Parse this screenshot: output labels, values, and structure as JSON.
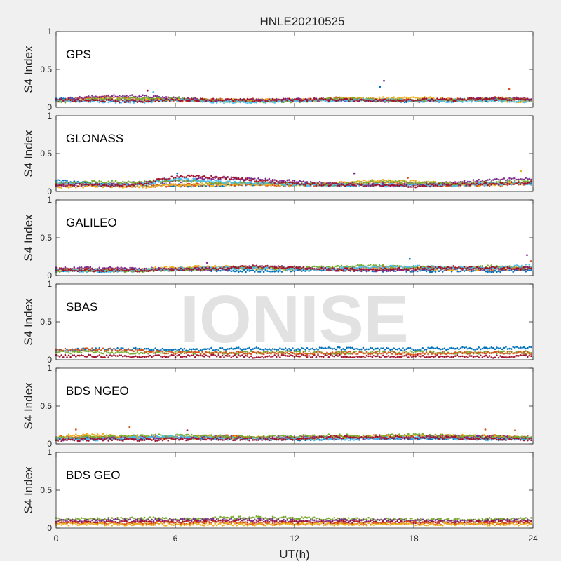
{
  "figure": {
    "title": "HNLE20210525",
    "watermark": "IONISE",
    "background": "#f0f0f0"
  },
  "series_colors": [
    "#0072bd",
    "#d95319",
    "#edb120",
    "#7e2f8e",
    "#77ac30",
    "#4dbeee",
    "#a2142f"
  ],
  "chart_data": [
    {
      "type": "scatter",
      "label": "GPS",
      "ylabel": "S4 Index",
      "xlim": [
        0,
        24
      ],
      "ylim": [
        0,
        1
      ],
      "xticks": [
        0,
        6,
        12,
        18,
        24
      ],
      "yticks": [
        0,
        0.5,
        1
      ],
      "series": [
        {
          "color": "#0072bd",
          "values": [
            0.11,
            0.1,
            0.09,
            0.1,
            0.08,
            0.09,
            0.09,
            0.1,
            0.09,
            0.08,
            0.09,
            0.1,
            0.1
          ]
        },
        {
          "color": "#d95319",
          "values": [
            0.1,
            0.13,
            0.12,
            0.09,
            0.1,
            0.1,
            0.09,
            0.12,
            0.1,
            0.09,
            0.1,
            0.12,
            0.11
          ]
        },
        {
          "color": "#edb120",
          "values": [
            0.08,
            0.11,
            0.1,
            0.09,
            0.08,
            0.1,
            0.09,
            0.11,
            0.12,
            0.13,
            0.1,
            0.09,
            0.08
          ]
        },
        {
          "color": "#7e2f8e",
          "values": [
            0.1,
            0.14,
            0.15,
            0.12,
            0.09,
            0.09,
            0.1,
            0.1,
            0.09,
            0.08,
            0.1,
            0.11,
            0.12
          ]
        },
        {
          "color": "#77ac30",
          "values": [
            0.07,
            0.1,
            0.12,
            0.11,
            0.09,
            0.08,
            0.08,
            0.11,
            0.1,
            0.09,
            0.1,
            0.1,
            0.09
          ]
        },
        {
          "color": "#4dbeee",
          "values": [
            0.09,
            0.08,
            0.07,
            0.1,
            0.07,
            0.07,
            0.08,
            0.09,
            0.1,
            0.09,
            0.08,
            0.09,
            0.08
          ]
        },
        {
          "color": "#a2142f",
          "values": [
            0.09,
            0.09,
            0.08,
            0.1,
            0.1,
            0.09,
            0.1,
            0.1,
            0.09,
            0.1,
            0.1,
            0.11,
            0.1
          ]
        }
      ],
      "spikes": [
        [
          4.6,
          0.22
        ],
        [
          4.9,
          0.2
        ],
        [
          16.5,
          0.35
        ],
        [
          16.3,
          0.27
        ],
        [
          22.8,
          0.24
        ]
      ]
    },
    {
      "type": "scatter",
      "label": "GLONASS",
      "ylabel": "S4 Index",
      "xlim": [
        0,
        24
      ],
      "ylim": [
        0,
        1
      ],
      "xticks": [
        0,
        6,
        12,
        18,
        24
      ],
      "yticks": [
        0,
        0.5,
        1
      ],
      "series": [
        {
          "color": "#0072bd",
          "values": [
            0.14,
            0.1,
            0.09,
            0.08,
            0.08,
            0.1,
            0.11,
            0.09,
            0.08,
            0.08,
            0.09,
            0.1,
            0.11
          ]
        },
        {
          "color": "#d95319",
          "values": [
            0.1,
            0.09,
            0.07,
            0.08,
            0.1,
            0.09,
            0.08,
            0.1,
            0.12,
            0.1,
            0.08,
            0.09,
            0.1
          ]
        },
        {
          "color": "#edb120",
          "values": [
            0.06,
            0.07,
            0.06,
            0.08,
            0.09,
            0.1,
            0.09,
            0.11,
            0.14,
            0.13,
            0.1,
            0.09,
            0.12
          ]
        },
        {
          "color": "#7e2f8e",
          "values": [
            0.08,
            0.1,
            0.11,
            0.13,
            0.18,
            0.16,
            0.13,
            0.1,
            0.09,
            0.1,
            0.12,
            0.15,
            0.17
          ]
        },
        {
          "color": "#77ac30",
          "values": [
            0.1,
            0.13,
            0.12,
            0.14,
            0.12,
            0.11,
            0.1,
            0.09,
            0.13,
            0.12,
            0.1,
            0.12,
            0.14
          ]
        },
        {
          "color": "#4dbeee",
          "values": [
            0.12,
            0.09,
            0.08,
            0.17,
            0.13,
            0.11,
            0.09,
            0.08,
            0.09,
            0.08,
            0.08,
            0.1,
            0.11
          ]
        },
        {
          "color": "#a2142f",
          "values": [
            0.09,
            0.08,
            0.08,
            0.2,
            0.19,
            0.15,
            0.1,
            0.09,
            0.08,
            0.07,
            0.09,
            0.1,
            0.12
          ]
        }
      ],
      "spikes": [
        [
          6.1,
          0.24
        ],
        [
          15.0,
          0.24
        ],
        [
          17.7,
          0.18
        ],
        [
          23.4,
          0.27
        ]
      ]
    },
    {
      "type": "scatter",
      "label": "GALILEO",
      "ylabel": "S4 Index",
      "xlim": [
        0,
        24
      ],
      "ylim": [
        0,
        1
      ],
      "xticks": [
        0,
        6,
        12,
        18,
        24
      ],
      "yticks": [
        0,
        0.5,
        1
      ],
      "series": [
        {
          "color": "#0072bd",
          "values": [
            0.07,
            0.06,
            0.07,
            0.08,
            0.07,
            0.06,
            0.07,
            0.08,
            0.07,
            0.06,
            0.07,
            0.06,
            0.07
          ]
        },
        {
          "color": "#d95319",
          "values": [
            0.09,
            0.08,
            0.08,
            0.09,
            0.1,
            0.11,
            0.1,
            0.09,
            0.1,
            0.11,
            0.09,
            0.08,
            0.1
          ]
        },
        {
          "color": "#edb120",
          "values": [
            0.08,
            0.07,
            0.08,
            0.11,
            0.12,
            0.1,
            0.09,
            0.08,
            0.09,
            0.1,
            0.08,
            0.09,
            0.11
          ]
        },
        {
          "color": "#7e2f8e",
          "values": [
            0.09,
            0.1,
            0.09,
            0.08,
            0.08,
            0.12,
            0.11,
            0.08,
            0.07,
            0.08,
            0.09,
            0.09,
            0.1
          ]
        },
        {
          "color": "#77ac30",
          "values": [
            0.06,
            0.07,
            0.06,
            0.08,
            0.09,
            0.1,
            0.09,
            0.12,
            0.13,
            0.11,
            0.1,
            0.12,
            0.1
          ]
        },
        {
          "color": "#4dbeee",
          "values": [
            0.07,
            0.06,
            0.07,
            0.09,
            0.1,
            0.1,
            0.08,
            0.09,
            0.11,
            0.12,
            0.1,
            0.09,
            0.14
          ]
        },
        {
          "color": "#a2142f",
          "values": [
            0.08,
            0.07,
            0.07,
            0.08,
            0.09,
            0.12,
            0.1,
            0.08,
            0.08,
            0.09,
            0.11,
            0.1,
            0.09
          ]
        }
      ],
      "spikes": [
        [
          7.6,
          0.17
        ],
        [
          17.8,
          0.22
        ],
        [
          23.7,
          0.27
        ],
        [
          23.9,
          0.19
        ]
      ]
    },
    {
      "type": "scatter",
      "label": "SBAS",
      "ylabel": "S4 Index",
      "xlim": [
        0,
        24
      ],
      "ylim": [
        0,
        1
      ],
      "xticks": [
        0,
        6,
        12,
        18,
        24
      ],
      "yticks": [
        0,
        0.5,
        1
      ],
      "series": [
        {
          "color": "#0072bd",
          "values": [
            0.13,
            0.14,
            0.14,
            0.13,
            0.14,
            0.15,
            0.14,
            0.15,
            0.14,
            0.14,
            0.15,
            0.15,
            0.16
          ]
        },
        {
          "color": "#77ac30",
          "values": [
            0.1,
            0.1,
            0.09,
            0.1,
            0.09,
            0.1,
            0.1,
            0.09,
            0.1,
            0.1,
            0.09,
            0.1,
            0.1
          ]
        },
        {
          "color": "#d95319",
          "values": [
            0.13,
            0.14,
            0.12,
            0.09,
            0.09,
            0.09,
            0.08,
            0.09,
            0.09,
            0.08,
            0.09,
            0.09,
            0.09
          ]
        },
        {
          "color": "#a2142f",
          "values": [
            0.05,
            0.05,
            0.04,
            0.05,
            0.05,
            0.04,
            0.05,
            0.05,
            0.04,
            0.05,
            0.05,
            0.04,
            0.05
          ]
        }
      ],
      "spikes": []
    },
    {
      "type": "scatter",
      "label": "BDS NGEO",
      "ylabel": "S4 Index",
      "xlim": [
        0,
        24
      ],
      "ylim": [
        0,
        1
      ],
      "xticks": [
        0,
        6,
        12,
        18,
        24
      ],
      "yticks": [
        0,
        0.5,
        1
      ],
      "series": [
        {
          "color": "#0072bd",
          "values": [
            0.07,
            0.08,
            0.07,
            0.09,
            0.08,
            0.07,
            0.06,
            0.07,
            0.08,
            0.07,
            0.08,
            0.07,
            0.08
          ]
        },
        {
          "color": "#d95319",
          "values": [
            0.09,
            0.1,
            0.09,
            0.08,
            0.1,
            0.09,
            0.08,
            0.09,
            0.1,
            0.1,
            0.09,
            0.1,
            0.09
          ]
        },
        {
          "color": "#edb120",
          "values": [
            0.1,
            0.12,
            0.09,
            0.08,
            0.09,
            0.08,
            0.07,
            0.08,
            0.09,
            0.1,
            0.11,
            0.1,
            0.08
          ]
        },
        {
          "color": "#7e2f8e",
          "values": [
            0.06,
            0.07,
            0.08,
            0.07,
            0.09,
            0.08,
            0.09,
            0.08,
            0.07,
            0.08,
            0.1,
            0.09,
            0.07
          ]
        },
        {
          "color": "#77ac30",
          "values": [
            0.08,
            0.09,
            0.1,
            0.11,
            0.1,
            0.09,
            0.1,
            0.11,
            0.1,
            0.12,
            0.1,
            0.09,
            0.08
          ]
        },
        {
          "color": "#4dbeee",
          "values": [
            0.07,
            0.06,
            0.08,
            0.09,
            0.07,
            0.06,
            0.07,
            0.06,
            0.07,
            0.08,
            0.07,
            0.06,
            0.07
          ]
        },
        {
          "color": "#a2142f",
          "values": [
            0.05,
            0.06,
            0.05,
            0.06,
            0.07,
            0.06,
            0.07,
            0.09,
            0.08,
            0.09,
            0.08,
            0.07,
            0.06
          ]
        }
      ],
      "spikes": [
        [
          1.0,
          0.19
        ],
        [
          3.7,
          0.22
        ],
        [
          6.6,
          0.18
        ],
        [
          21.6,
          0.19
        ],
        [
          23.1,
          0.18
        ]
      ]
    },
    {
      "type": "scatter",
      "label": "BDS GEO",
      "ylabel": "S4 Index",
      "xlim": [
        0,
        24
      ],
      "ylim": [
        0,
        1
      ],
      "xticks": [
        0,
        6,
        12,
        18,
        24
      ],
      "yticks": [
        0,
        0.5,
        1
      ],
      "series": [
        {
          "color": "#77ac30",
          "values": [
            0.12,
            0.12,
            0.13,
            0.12,
            0.13,
            0.14,
            0.13,
            0.12,
            0.12,
            0.11,
            0.11,
            0.12,
            0.12
          ]
        },
        {
          "color": "#7e2f8e",
          "values": [
            0.1,
            0.1,
            0.1,
            0.11,
            0.11,
            0.11,
            0.1,
            0.1,
            0.1,
            0.1,
            0.09,
            0.1,
            0.1
          ]
        },
        {
          "color": "#a2142f",
          "values": [
            0.08,
            0.08,
            0.08,
            0.08,
            0.09,
            0.09,
            0.08,
            0.08,
            0.08,
            0.08,
            0.08,
            0.08,
            0.08
          ]
        },
        {
          "color": "#d95319",
          "values": [
            0.07,
            0.06,
            0.06,
            0.07,
            0.07,
            0.06,
            0.06,
            0.06,
            0.06,
            0.07,
            0.06,
            0.06,
            0.07
          ]
        },
        {
          "color": "#edb120",
          "values": [
            0.05,
            0.05,
            0.05,
            0.05,
            0.05,
            0.05,
            0.05,
            0.05,
            0.05,
            0.05,
            0.05,
            0.05,
            0.05
          ]
        }
      ],
      "spikes": []
    }
  ],
  "x_axis": {
    "label": "UT(h)",
    "ticks": [
      0,
      6,
      12,
      18,
      24
    ]
  }
}
